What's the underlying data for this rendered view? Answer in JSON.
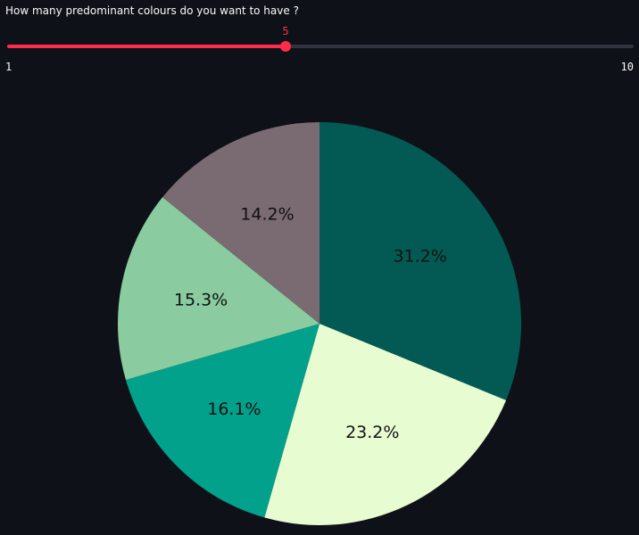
{
  "slider": {
    "label": "How many predominant colours do you want to have ?",
    "value": 5,
    "value_text": "5",
    "min": 1,
    "max": 10,
    "min_text": "1",
    "max_text": "10",
    "accent_color": "#ff2b4a",
    "track_color": "#31333f"
  },
  "chart_data": {
    "type": "pie",
    "start_angle_deg": 90,
    "direction": "clockwise",
    "slices": [
      {
        "label": "31.2%",
        "value": 31.2,
        "color": "#035a54"
      },
      {
        "label": "23.2%",
        "value": 23.2,
        "color": "#e8fcd2"
      },
      {
        "label": "16.1%",
        "value": 16.1,
        "color": "#02a18c"
      },
      {
        "label": "15.3%",
        "value": 15.3,
        "color": "#8acc9f"
      },
      {
        "label": "14.2%",
        "value": 14.2,
        "color": "#7a6a72"
      }
    ]
  }
}
